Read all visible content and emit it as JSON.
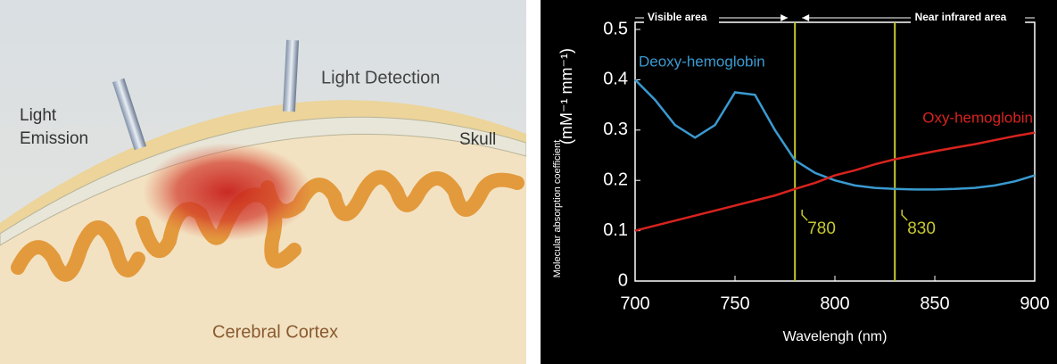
{
  "illustration": {
    "labels": [
      "Light Emission",
      "Light Detection",
      "Skull",
      "Cerebral Cortex"
    ]
  },
  "chart_data": {
    "type": "line",
    "xlabel": "Wavelengh (nm)",
    "ylabel": "Molecular absorption coefficient",
    "ylabel_unit": "(mM⁻¹ mm⁻¹)",
    "annotations": [
      "Visible area",
      "Near infrared area"
    ],
    "x": [
      700,
      710,
      720,
      730,
      740,
      750,
      760,
      770,
      780,
      790,
      800,
      810,
      820,
      830,
      840,
      850,
      860,
      870,
      880,
      890,
      900
    ],
    "series": [
      {
        "name": "Deoxy-hemoglobin",
        "color": "#3a9ad0",
        "values": [
          0.4,
          0.36,
          0.31,
          0.285,
          0.31,
          0.375,
          0.37,
          0.3,
          0.24,
          0.215,
          0.2,
          0.19,
          0.185,
          0.183,
          0.182,
          0.182,
          0.183,
          0.185,
          0.19,
          0.198,
          0.21
        ]
      },
      {
        "name": "Oxy-hemoglobin",
        "color": "#d8231e",
        "values": [
          0.1,
          0.11,
          0.12,
          0.13,
          0.14,
          0.15,
          0.16,
          0.17,
          0.183,
          0.195,
          0.21,
          0.22,
          0.232,
          0.242,
          0.25,
          0.258,
          0.265,
          0.272,
          0.28,
          0.288,
          0.295
        ]
      }
    ],
    "markers": [
      780,
      830
    ],
    "marker_color": "#c8c830",
    "xlim": [
      700,
      900
    ],
    "xticks": [
      700,
      750,
      800,
      850,
      900
    ],
    "ylim": [
      0,
      0.5
    ],
    "yticks": [
      0,
      0.1,
      0.2,
      0.3,
      0.4,
      0.5
    ]
  }
}
